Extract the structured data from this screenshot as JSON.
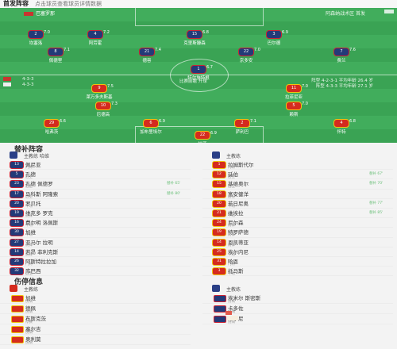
{
  "header": {
    "title": "首发阵容",
    "subtitle": "点击球员查看球员详情数据"
  },
  "pitch": {
    "home_label": "巴塞罗那",
    "away_label": "阿森纳战术区 首发",
    "center_text": "比赛前瞻 开球",
    "home_info": [
      "4-3-3",
      "4-3-3"
    ],
    "away_info": [
      "阵型 4-2-3-1 平均年龄 26.4 岁",
      "阵型 4-3-3 平均年龄 27.1 岁"
    ],
    "home_players": [
      {
        "num": "1",
        "name": "特尔施特根",
        "rating": "6.7"
      },
      {
        "num": "2",
        "name": "坎塞洛",
        "rating": "7.0"
      },
      {
        "num": "4",
        "name": "阿劳霍",
        "rating": "7.2"
      },
      {
        "num": "15",
        "name": "克里斯滕森",
        "rating": "6.8"
      },
      {
        "num": "3",
        "name": "巴尔德",
        "rating": "6.9"
      },
      {
        "num": "8",
        "name": "佩德里",
        "rating": "7.1"
      },
      {
        "num": "21",
        "name": "德容",
        "rating": "7.4"
      },
      {
        "num": "22",
        "name": "京多安",
        "rating": "7.0"
      },
      {
        "num": "7",
        "name": "费兰",
        "rating": "7.6"
      }
    ],
    "away_players": [
      {
        "num": "9",
        "name": "莱万多夫斯基",
        "rating": "7.5"
      },
      {
        "num": "11",
        "name": "拉菲尼亚",
        "rating": "7.0"
      },
      {
        "num": "10",
        "name": "厄德高",
        "rating": "7.3"
      },
      {
        "num": "5",
        "name": "赖斯",
        "rating": "7.0"
      },
      {
        "num": "29",
        "name": "哈弗茨",
        "rating": "6.6"
      },
      {
        "num": "6",
        "name": "加布里埃尔",
        "rating": "6.9"
      },
      {
        "num": "2",
        "name": "萨利巴",
        "rating": "7.1"
      },
      {
        "num": "4",
        "name": "怀特",
        "rating": "6.8"
      },
      {
        "num": "35",
        "name": "津琴科",
        "rating": "6.5"
      },
      {
        "num": "22",
        "name": "拉亚",
        "rating": "6.9"
      }
    ]
  },
  "subs": {
    "title": "替补阵容",
    "home_coach": "主教练 哈维",
    "away_coach": "主教练",
    "home": [
      {
        "num": "13",
        "name": "佩尼亚",
        "pos": "门将",
        "tag": ""
      },
      {
        "num": "5",
        "name": "孔德",
        "pos": "后卫",
        "tag": ""
      },
      {
        "num": "23",
        "name": "孔德 佩德罗",
        "pos": "后卫",
        "tag": "替补 65'"
      },
      {
        "num": "17",
        "name": "马科斯 阿隆索",
        "pos": "后卫",
        "tag": "替补 80'"
      },
      {
        "num": "20",
        "name": "罗贝托",
        "pos": "中场",
        "tag": ""
      },
      {
        "num": "19",
        "name": "维克多 罗克",
        "pos": "前锋",
        "tag": ""
      },
      {
        "num": "16",
        "name": "费尔明 洛佩斯",
        "pos": "中场",
        "tag": ""
      },
      {
        "num": "30",
        "name": "加维",
        "pos": "中场",
        "tag": ""
      },
      {
        "num": "27",
        "name": "亚马尔 拉明",
        "pos": "前锋",
        "tag": ""
      },
      {
        "num": "14",
        "name": "若昂 菲利克斯",
        "pos": "前锋",
        "tag": ""
      },
      {
        "num": "26",
        "name": "阿斯特拉拉加",
        "pos": "门将",
        "tag": ""
      },
      {
        "num": "32",
        "name": "库巴西",
        "pos": "后卫",
        "tag": ""
      }
    ],
    "away": [
      {
        "num": "1",
        "name": "拉姆斯代尔",
        "pos": "门将",
        "tag": ""
      },
      {
        "num": "12",
        "name": "廷伯",
        "pos": "后卫",
        "tag": "替补 67'"
      },
      {
        "num": "15",
        "name": "基维奥尔",
        "pos": "后卫",
        "tag": "替补 70'"
      },
      {
        "num": "18",
        "name": "富安健洋",
        "pos": "后卫",
        "tag": ""
      },
      {
        "num": "20",
        "name": "若日尼奥",
        "pos": "中场",
        "tag": "替补 77'"
      },
      {
        "num": "21",
        "name": "维埃拉",
        "pos": "中场",
        "tag": "替补 85'"
      },
      {
        "num": "24",
        "name": "尼尔森",
        "pos": "前锋",
        "tag": ""
      },
      {
        "num": "19",
        "name": "特罗萨德",
        "pos": "前锋",
        "tag": ""
      },
      {
        "num": "14",
        "name": "恩凯蒂亚",
        "pos": "前锋",
        "tag": ""
      },
      {
        "num": "25",
        "name": "埃尔内尼",
        "pos": "中场",
        "tag": ""
      },
      {
        "num": "31",
        "name": "哈恩",
        "pos": "门将",
        "tag": ""
      },
      {
        "num": "3",
        "name": "托马斯",
        "pos": "中场",
        "tag": ""
      }
    ]
  },
  "injuries": {
    "title": "伤停信息",
    "home_coach": "主教练",
    "away_coach": "主教练",
    "home": [
      {
        "name": "加维",
        "pos": "伤病"
      },
      {
        "name": "德佩",
        "pos": "伤病"
      },
      {
        "name": "布斯克茨",
        "pos": "停赛"
      },
      {
        "name": "塞尔吉",
        "pos": "伤病"
      },
      {
        "name": "奥利莫",
        "pos": "伤病"
      }
    ],
    "away": [
      {
        "name": "埃米尔 斯密斯",
        "pos": "伤病"
      },
      {
        "name": "卡多佐",
        "pos": "伤病"
      },
      {
        "name": "蒂尔尼",
        "pos": "伤病"
      }
    ]
  }
}
